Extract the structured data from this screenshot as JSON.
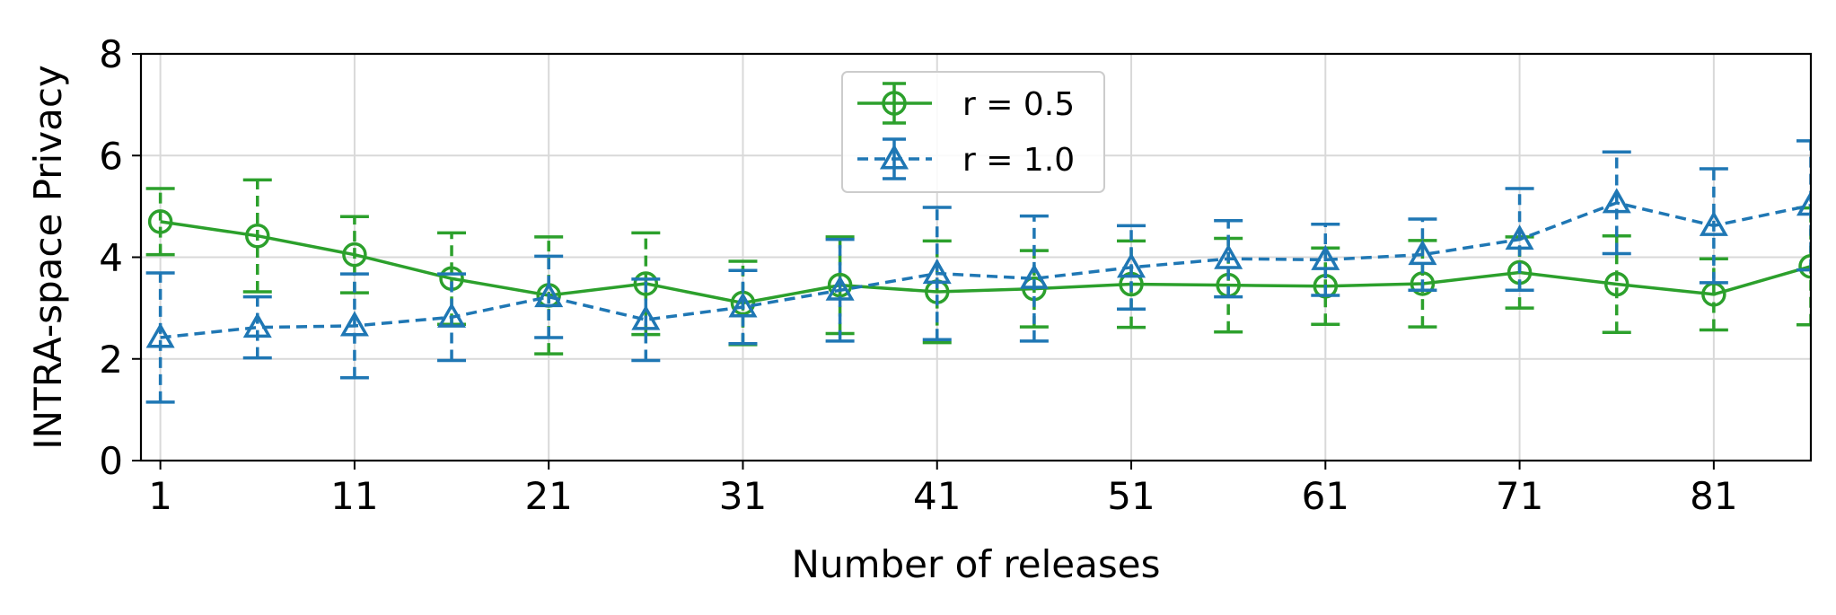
{
  "chart_data": {
    "type": "line",
    "xlabel": "Number of releases",
    "ylabel": "INTRA-space Privacy",
    "xlim": [
      0,
      86
    ],
    "ylim": [
      0,
      8
    ],
    "x_ticks": [
      1,
      11,
      21,
      31,
      41,
      51,
      61,
      71,
      81
    ],
    "y_ticks": [
      0,
      2,
      4,
      6,
      8
    ],
    "grid": true,
    "legend_position": "top-center",
    "x": [
      1,
      6,
      11,
      16,
      21,
      26,
      31,
      36,
      41,
      46,
      51,
      56,
      61,
      66,
      71,
      76,
      81,
      86
    ],
    "series": [
      {
        "name": "r = 0.5",
        "color": "#2ca02c",
        "marker": "circle",
        "line_style": "solid",
        "values": [
          4.7,
          4.42,
          4.05,
          3.58,
          3.25,
          3.48,
          3.1,
          3.45,
          3.32,
          3.38,
          3.47,
          3.45,
          3.43,
          3.48,
          3.7,
          3.47,
          3.27,
          3.82
        ],
        "errors": [
          0.65,
          1.1,
          0.75,
          0.9,
          1.15,
          1.0,
          0.82,
          0.95,
          1.0,
          0.75,
          0.85,
          0.92,
          0.75,
          0.85,
          0.7,
          0.95,
          0.7,
          1.15
        ]
      },
      {
        "name": "r = 1.0",
        "color": "#1f77b4",
        "marker": "triangle",
        "line_style": "dashed",
        "values": [
          2.42,
          2.62,
          2.65,
          2.82,
          3.22,
          2.77,
          3.02,
          3.35,
          3.68,
          3.58,
          3.8,
          3.97,
          3.95,
          4.05,
          4.35,
          5.07,
          4.62,
          5.02
        ],
        "errors": [
          1.27,
          0.6,
          1.02,
          0.85,
          0.8,
          0.8,
          0.72,
          1.0,
          1.3,
          1.23,
          0.82,
          0.75,
          0.7,
          0.7,
          1.0,
          1.0,
          1.12,
          1.27
        ]
      }
    ]
  }
}
